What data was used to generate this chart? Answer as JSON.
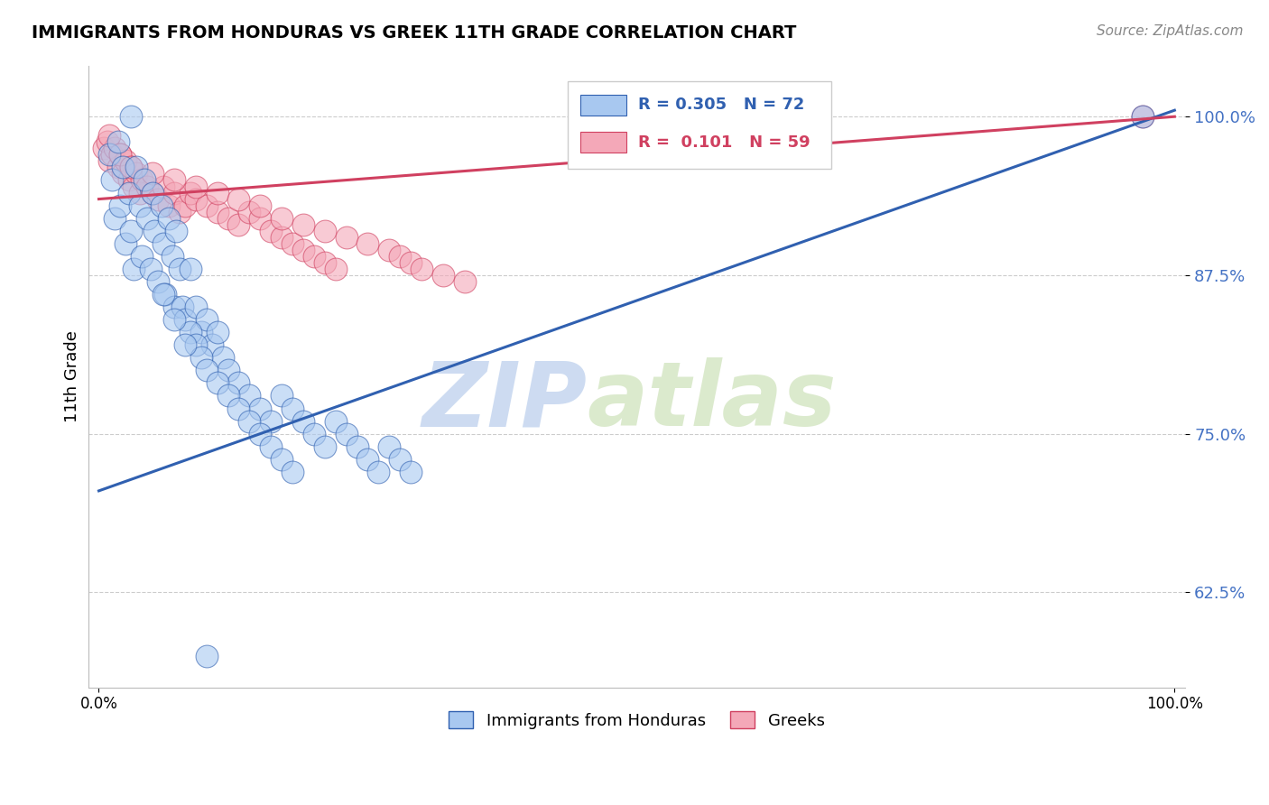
{
  "title": "IMMIGRANTS FROM HONDURAS VS GREEK 11TH GRADE CORRELATION CHART",
  "ylabel": "11th Grade",
  "source": "Source: ZipAtlas.com",
  "watermark_zip": "ZIP",
  "watermark_atlas": "atlas",
  "legend_label_blue": "Immigrants from Honduras",
  "legend_label_pink": "Greeks",
  "R_blue": 0.305,
  "N_blue": 72,
  "R_pink": 0.101,
  "N_pink": 59,
  "color_blue": "#A8C8F0",
  "color_pink": "#F4A8B8",
  "color_blue_line": "#3060B0",
  "color_pink_line": "#D04060",
  "color_grid": "#CCCCCC",
  "background_color": "#FFFFFF",
  "ytick_labels": [
    "62.5%",
    "75.0%",
    "87.5%",
    "100.0%"
  ],
  "ytick_values": [
    62.5,
    75.0,
    87.5,
    100.0
  ],
  "ylim": [
    55,
    104
  ],
  "xlim": [
    -1,
    101
  ],
  "blue_line_x": [
    0,
    100
  ],
  "blue_line_y": [
    70.5,
    100.5
  ],
  "pink_line_x": [
    0,
    100
  ],
  "pink_line_y": [
    93.5,
    100.0
  ],
  "blue_x": [
    1.0,
    1.2,
    1.5,
    1.8,
    2.0,
    2.2,
    2.5,
    2.8,
    3.0,
    3.2,
    3.5,
    3.8,
    4.0,
    4.2,
    4.5,
    4.8,
    5.0,
    5.2,
    5.5,
    5.8,
    6.0,
    6.2,
    6.5,
    6.8,
    7.0,
    7.2,
    7.5,
    7.8,
    8.0,
    8.5,
    9.0,
    9.5,
    10.0,
    10.5,
    11.0,
    11.5,
    12.0,
    13.0,
    14.0,
    15.0,
    16.0,
    17.0,
    18.0,
    19.0,
    20.0,
    21.0,
    22.0,
    23.0,
    24.0,
    25.0,
    26.0,
    27.0,
    28.0,
    29.0,
    8.5,
    9.0,
    9.5,
    10.0,
    11.0,
    12.0,
    13.0,
    14.0,
    15.0,
    16.0,
    17.0,
    18.0,
    3.0,
    6.0,
    7.0,
    8.0,
    97.0,
    10.0
  ],
  "blue_y": [
    97.0,
    95.0,
    92.0,
    98.0,
    93.0,
    96.0,
    90.0,
    94.0,
    91.0,
    88.0,
    96.0,
    93.0,
    89.0,
    95.0,
    92.0,
    88.0,
    94.0,
    91.0,
    87.0,
    93.0,
    90.0,
    86.0,
    92.0,
    89.0,
    85.0,
    91.0,
    88.0,
    85.0,
    84.0,
    88.0,
    85.0,
    83.0,
    84.0,
    82.0,
    83.0,
    81.0,
    80.0,
    79.0,
    78.0,
    77.0,
    76.0,
    78.0,
    77.0,
    76.0,
    75.0,
    74.0,
    76.0,
    75.0,
    74.0,
    73.0,
    72.0,
    74.0,
    73.0,
    72.0,
    83.0,
    82.0,
    81.0,
    80.0,
    79.0,
    78.0,
    77.0,
    76.0,
    75.0,
    74.0,
    73.0,
    72.0,
    100.0,
    86.0,
    84.0,
    82.0,
    100.0,
    57.5
  ],
  "pink_x": [
    0.5,
    0.8,
    1.0,
    1.2,
    1.5,
    1.8,
    2.0,
    2.2,
    2.5,
    2.8,
    3.0,
    3.2,
    3.5,
    3.8,
    4.0,
    4.5,
    5.0,
    5.5,
    6.0,
    6.5,
    7.0,
    7.5,
    8.0,
    8.5,
    9.0,
    10.0,
    11.0,
    12.0,
    13.0,
    14.0,
    15.0,
    16.0,
    17.0,
    18.0,
    19.0,
    20.0,
    21.0,
    22.0,
    1.0,
    2.0,
    3.0,
    5.0,
    7.0,
    9.0,
    11.0,
    13.0,
    15.0,
    17.0,
    19.0,
    21.0,
    23.0,
    25.0,
    27.0,
    28.0,
    29.0,
    30.0,
    32.0,
    34.0,
    97.0
  ],
  "pink_y": [
    97.5,
    98.0,
    96.5,
    97.0,
    97.5,
    96.0,
    97.0,
    95.5,
    96.5,
    95.0,
    96.0,
    94.5,
    95.5,
    94.0,
    95.0,
    94.5,
    94.0,
    93.5,
    94.5,
    93.0,
    94.0,
    92.5,
    93.0,
    94.0,
    93.5,
    93.0,
    92.5,
    92.0,
    91.5,
    92.5,
    92.0,
    91.0,
    90.5,
    90.0,
    89.5,
    89.0,
    88.5,
    88.0,
    98.5,
    97.0,
    96.0,
    95.5,
    95.0,
    94.5,
    94.0,
    93.5,
    93.0,
    92.0,
    91.5,
    91.0,
    90.5,
    90.0,
    89.5,
    89.0,
    88.5,
    88.0,
    87.5,
    87.0,
    100.0
  ]
}
